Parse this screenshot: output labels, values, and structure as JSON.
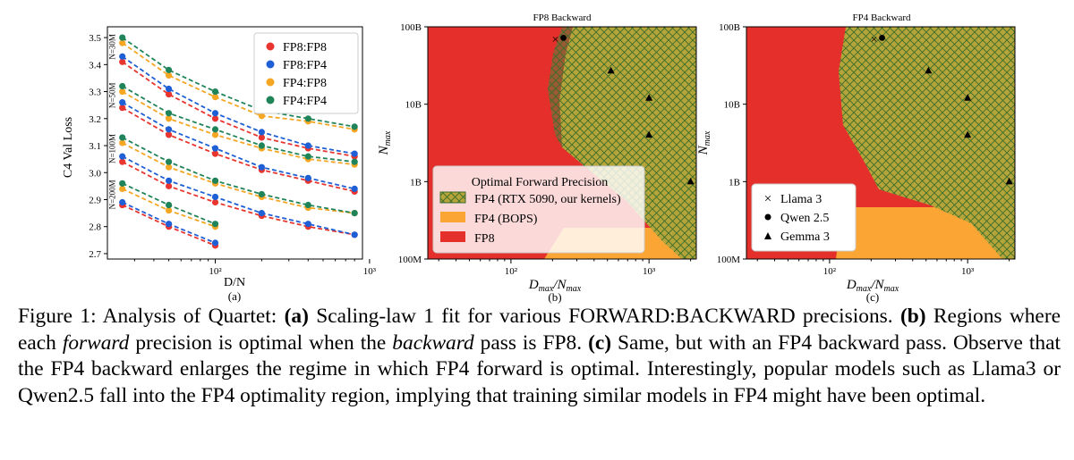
{
  "figure": {
    "colors": {
      "fp8_fp8": "#e8352f",
      "fp8_fp4": "#1f5fd6",
      "fp4_fp8": "#f5a623",
      "fp4_fp4": "#20845a",
      "region_fp8": "#e42f2a",
      "region_fp4_bops": "#fba535",
      "region_fp4_rtx": "#b5a43a",
      "hatch": "#3a6d2b"
    },
    "panels": {
      "a": {
        "sublabel": "(a)",
        "xlabel": "D/N",
        "ylabel": "C4 Val Loss",
        "y_ticks": [
          "3.5",
          "3.4",
          "3.3",
          "3.2",
          "3.1",
          "3.0",
          "2.9",
          "2.8",
          "2.7"
        ],
        "x_ticks": [
          "10²",
          "10³"
        ],
        "group_labels": [
          "N=30M",
          "N=50M",
          "N=100M",
          "N=200M"
        ],
        "legend": [
          "FP8:FP8",
          "FP8:FP4",
          "FP4:FP8",
          "FP4:FP4"
        ]
      },
      "b": {
        "title": "FP8 Backward",
        "sublabel": "(b)",
        "xlabel": "D_max/N_max",
        "ylabel": "N_max",
        "y_ticks": [
          "100B",
          "10B",
          "1B",
          "100M"
        ],
        "x_ticks": [
          "10²",
          "10³"
        ],
        "legend_title": "Optimal Forward Precision",
        "legend": [
          "FP4 (RTX 5090, our kernels)",
          "FP4 (BOPS)",
          "FP8"
        ]
      },
      "c": {
        "title": "FP4 Backward",
        "sublabel": "(c)",
        "xlabel": "D_max/N_max",
        "ylabel": "N_max",
        "y_ticks": [
          "100B",
          "10B",
          "1B",
          "100M"
        ],
        "x_ticks": [
          "10²",
          "10³"
        ],
        "legend": [
          "Llama 3",
          "Qwen 2.5",
          "Gemma 3"
        ]
      }
    }
  },
  "chart_data": [
    {
      "type": "scatter",
      "panel": "a",
      "xlabel": "D/N",
      "ylabel": "C4 Val Loss",
      "xscale": "log",
      "xlim": [
        20,
        900
      ],
      "ylim": [
        2.68,
        3.54
      ],
      "x": [
        25,
        50,
        100,
        200,
        400,
        800
      ],
      "fits": "dashed scaling-law 1 fit lines per series",
      "groups": [
        {
          "label": "N=30M",
          "series": [
            {
              "name": "FP8:FP8",
              "values": [
                3.41,
                3.29,
                3.2,
                3.13,
                3.09,
                3.06
              ]
            },
            {
              "name": "FP8:FP4",
              "values": [
                3.43,
                3.31,
                3.22,
                3.15,
                3.1,
                3.07
              ]
            },
            {
              "name": "FP4:FP8",
              "values": [
                3.48,
                3.36,
                3.28,
                3.21,
                3.19,
                3.16
              ]
            },
            {
              "name": "FP4:FP4",
              "values": [
                3.5,
                3.38,
                3.3,
                3.23,
                3.2,
                3.17
              ]
            }
          ]
        },
        {
          "label": "N=50M",
          "series": [
            {
              "name": "FP8:FP8",
              "values": [
                3.24,
                3.14,
                3.07,
                3.01,
                2.97,
                2.93
              ]
            },
            {
              "name": "FP8:FP4",
              "values": [
                3.26,
                3.16,
                3.09,
                3.02,
                2.98,
                2.94
              ]
            },
            {
              "name": "FP4:FP8",
              "values": [
                3.3,
                3.2,
                3.14,
                3.09,
                3.05,
                3.03
              ]
            },
            {
              "name": "FP4:FP4",
              "values": [
                3.32,
                3.22,
                3.16,
                3.1,
                3.06,
                3.04
              ]
            }
          ]
        },
        {
          "label": "N=100M",
          "series": [
            {
              "name": "FP8:FP8",
              "values": [
                3.04,
                2.95,
                2.89,
                2.84,
                2.8,
                2.77
              ]
            },
            {
              "name": "FP8:FP4",
              "values": [
                3.06,
                2.97,
                2.91,
                2.85,
                2.81,
                2.77
              ]
            },
            {
              "name": "FP4:FP8",
              "values": [
                3.11,
                3.02,
                2.96,
                2.91,
                2.87,
                2.85
              ]
            },
            {
              "name": "FP4:FP4",
              "values": [
                3.13,
                3.04,
                2.97,
                2.92,
                2.88,
                2.85
              ]
            }
          ]
        },
        {
          "label": "N=200M",
          "series": [
            {
              "name": "FP8:FP8",
              "values": [
                2.88,
                2.8,
                2.73
              ]
            },
            {
              "name": "FP8:FP4",
              "values": [
                2.89,
                2.81,
                2.74
              ]
            },
            {
              "name": "FP4:FP8",
              "values": [
                2.94,
                2.86,
                2.8
              ]
            },
            {
              "name": "FP4:FP4",
              "values": [
                2.96,
                2.88,
                2.81
              ]
            }
          ]
        }
      ]
    },
    {
      "type": "scatter",
      "panel": "b",
      "title": "FP8 Backward",
      "xlabel": "D_max/N_max",
      "ylabel": "N_max",
      "xscale": "log",
      "yscale": "log",
      "xlim": [
        25,
        2200
      ],
      "ylim": [
        100000000.0,
        100000000000.0
      ],
      "regions": [
        "FP4 (RTX 5090, our kernels)",
        "FP4 (BOPS)",
        "FP8"
      ],
      "models": [
        {
          "name": "Llama 3",
          "marker": "x",
          "x": 210,
          "y": 70000000000.0
        },
        {
          "name": "Qwen 2.5",
          "marker": "o",
          "x": 240,
          "y": 72000000000.0
        },
        {
          "name": "Gemma 3",
          "marker": "^",
          "x": 530,
          "y": 27000000000.0
        },
        {
          "name": "Gemma 3",
          "marker": "^",
          "x": 1000,
          "y": 12000000000.0
        },
        {
          "name": "Gemma 3",
          "marker": "^",
          "x": 1000,
          "y": 4000000000.0
        },
        {
          "name": "Gemma 3",
          "marker": "^",
          "x": 2000,
          "y": 1000000000.0
        }
      ]
    },
    {
      "type": "scatter",
      "panel": "c",
      "title": "FP4 Backward",
      "xlabel": "D_max/N_max",
      "ylabel": "N_max",
      "xscale": "log",
      "yscale": "log",
      "xlim": [
        25,
        2200
      ],
      "ylim": [
        100000000.0,
        100000000000.0
      ],
      "regions": [
        "FP4 (RTX 5090, our kernels)",
        "FP4 (BOPS)",
        "FP8"
      ],
      "models": [
        {
          "name": "Llama 3",
          "marker": "x",
          "x": 210,
          "y": 70000000000.0
        },
        {
          "name": "Qwen 2.5",
          "marker": "o",
          "x": 240,
          "y": 72000000000.0
        },
        {
          "name": "Gemma 3",
          "marker": "^",
          "x": 520,
          "y": 27000000000.0
        },
        {
          "name": "Gemma 3",
          "marker": "^",
          "x": 1000,
          "y": 12000000000.0
        },
        {
          "name": "Gemma 3",
          "marker": "^",
          "x": 1000,
          "y": 4000000000.0
        },
        {
          "name": "Gemma 3",
          "marker": "^",
          "x": 2000,
          "y": 1000000000.0
        }
      ]
    }
  ],
  "caption": {
    "fig_label": "Figure 1:",
    "p1": " Analysis of Quartet: ",
    "a_label": "(a)",
    "p2": " Scaling-law 1 fit for various FORWARD:BACKWARD precisions. ",
    "b_label": "(b)",
    "p3": " Regions where each ",
    "em1": "forward",
    "p4": " precision is optimal when the ",
    "em2": "backward",
    "p5": " pass is FP8. ",
    "c_label": "(c)",
    "p6": " Same, but with an FP4 backward pass. Observe that the FP4 backward enlarges the regime in which FP4 forward is optimal. Interestingly, popular models such as Llama3 or Qwen2.5 fall into the FP4 optimality region, implying that training similar models in FP4 might have been optimal."
  }
}
